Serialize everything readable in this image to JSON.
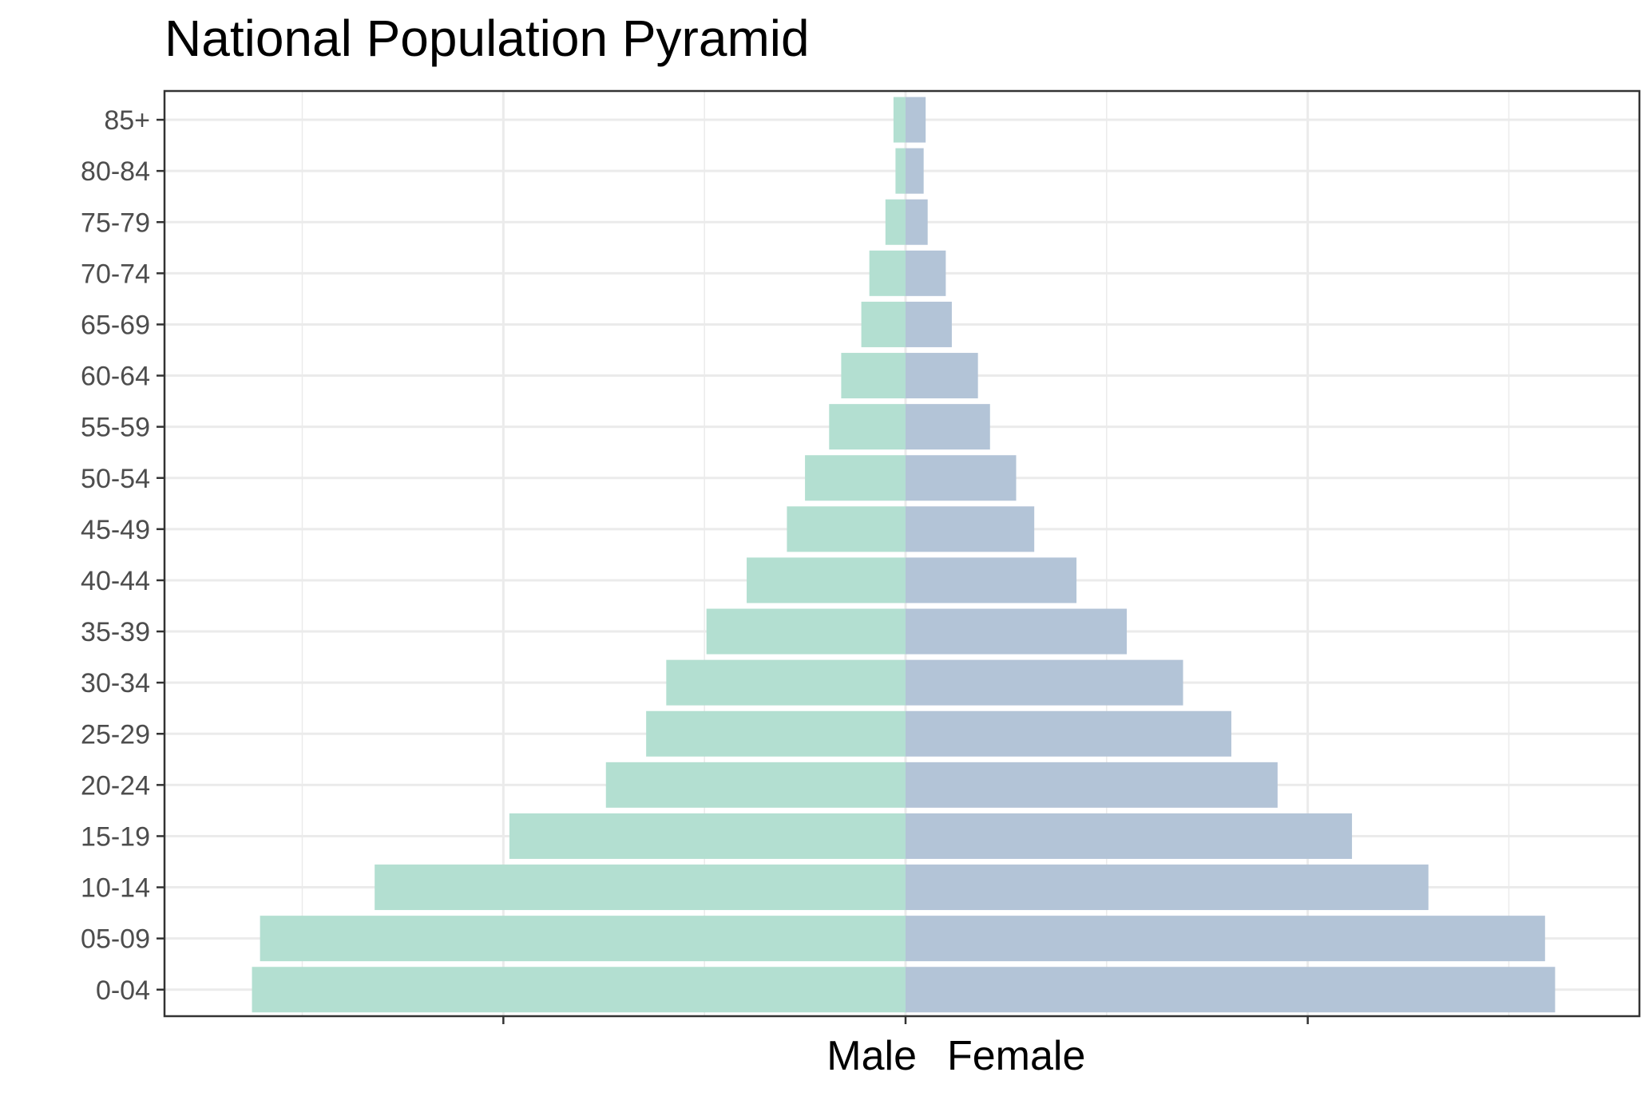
{
  "chart_data": {
    "type": "bar",
    "orientation": "horizontal",
    "title": "National Population Pyramid",
    "xlabel_left": "Male",
    "xlabel_right": "Female",
    "ylabel": "",
    "xlim": [
      -3.25,
      3.55
    ],
    "x_ticks": [
      -2,
      0,
      2
    ],
    "x_tick_labels": [
      "",
      "",
      ""
    ],
    "legend": "none",
    "grid": true,
    "categories": [
      "0-04",
      "05-09",
      "10-14",
      "15-19",
      "20-24",
      "25-29",
      "30-34",
      "35-39",
      "40-44",
      "45-49",
      "50-54",
      "55-59",
      "60-64",
      "65-69",
      "70-74",
      "75-79",
      "80-84",
      "85+"
    ],
    "series": [
      {
        "name": "Male",
        "color": "#b3dfd1",
        "values": [
          -3.25,
          -3.21,
          -2.64,
          -1.97,
          -1.49,
          -1.29,
          -1.19,
          -0.99,
          -0.79,
          -0.59,
          -0.5,
          -0.38,
          -0.32,
          -0.22,
          -0.18,
          -0.1,
          -0.05,
          -0.06
        ]
      },
      {
        "name": "Female",
        "color": "#b3c4d7",
        "values": [
          3.23,
          3.18,
          2.6,
          2.22,
          1.85,
          1.62,
          1.38,
          1.1,
          0.85,
          0.64,
          0.55,
          0.42,
          0.36,
          0.23,
          0.2,
          0.11,
          0.09,
          0.1
        ]
      }
    ]
  }
}
